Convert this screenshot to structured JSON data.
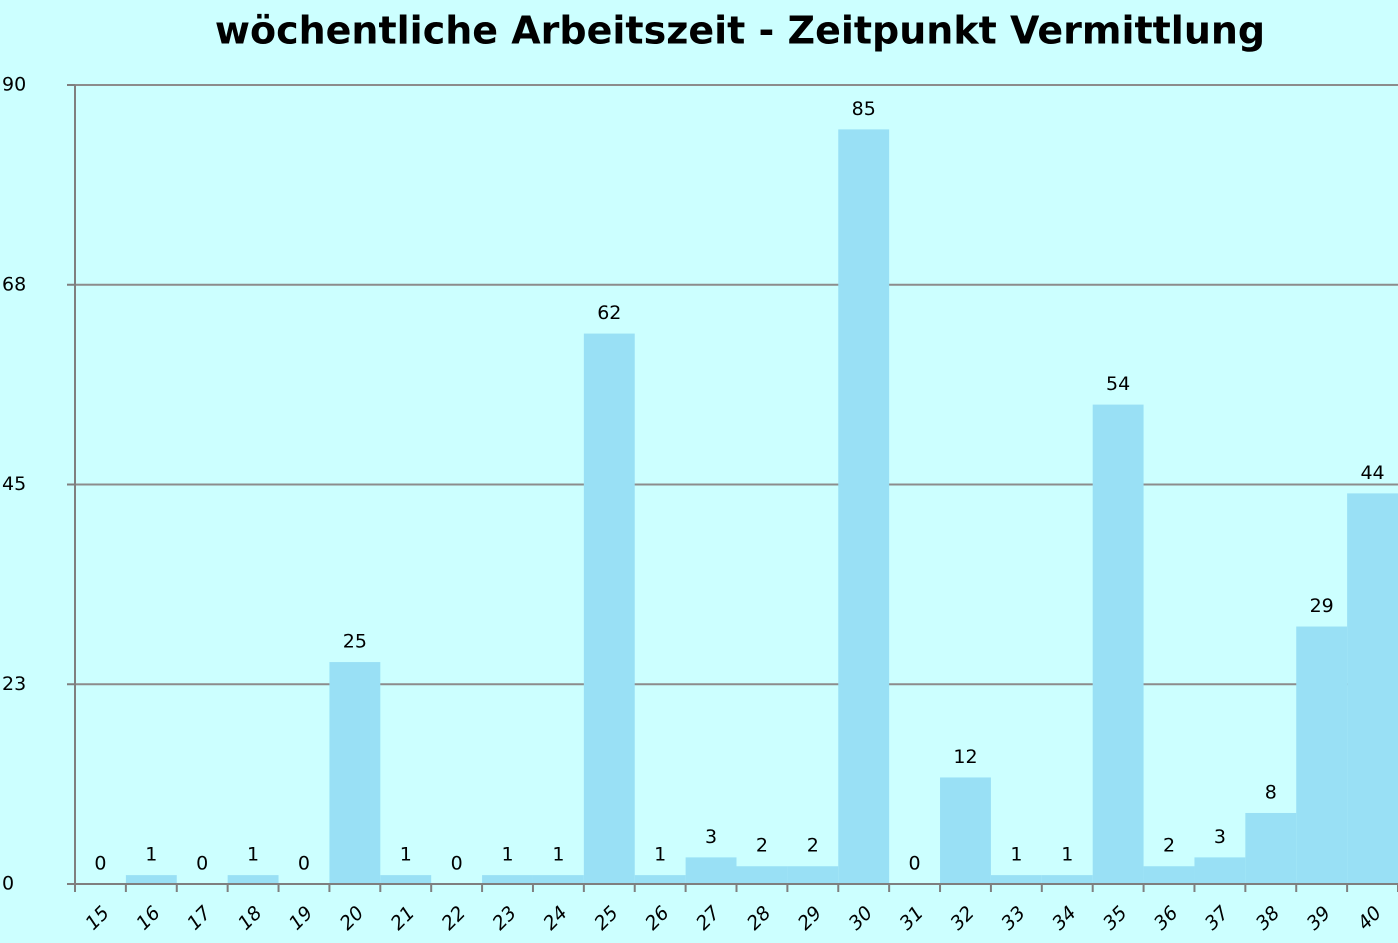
{
  "chart_data": {
    "type": "bar",
    "title": "wöchentliche Arbeitszeit - Zeitpunkt Vermittlung",
    "categories": [
      "15",
      "16",
      "17",
      "18",
      "19",
      "20",
      "21",
      "22",
      "23",
      "24",
      "25",
      "26",
      "27",
      "28",
      "29",
      "30",
      "31",
      "32",
      "33",
      "34",
      "35",
      "36",
      "37",
      "38",
      "39",
      "40"
    ],
    "values": [
      0,
      1,
      0,
      1,
      0,
      25,
      1,
      0,
      1,
      1,
      62,
      1,
      3,
      2,
      2,
      85,
      0,
      12,
      1,
      1,
      54,
      2,
      3,
      8,
      29,
      44
    ],
    "color": "#99e0f5",
    "ylim": [
      0,
      90
    ],
    "yticks": [
      0,
      {
        "value": 22.5,
        "label": "23"
      },
      45,
      {
        "value": 67.5,
        "label": "68"
      },
      90
    ],
    "grid": true
  }
}
